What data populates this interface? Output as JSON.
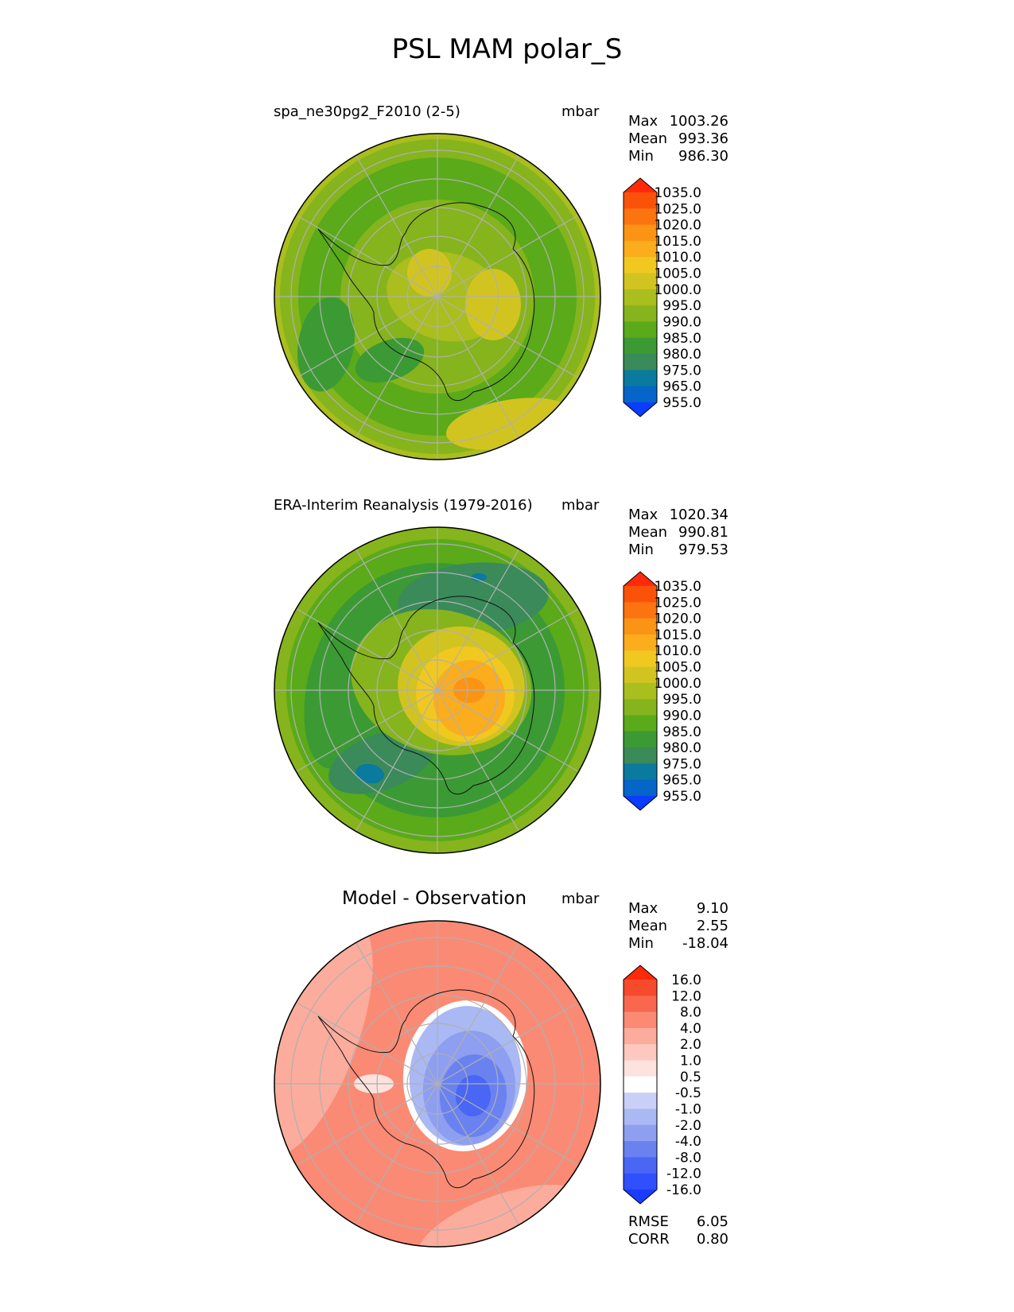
{
  "figure_title": "PSL MAM polar_S",
  "chart_data": [
    {
      "type": "heatmap",
      "projection": "south-polar-stereographic",
      "title": "spa_ne30pg2_F2010 (2-5)",
      "units": "mbar",
      "stats": [
        {
          "label": "Max",
          "value": "1003.26"
        },
        {
          "label": "Mean",
          "value": "993.36"
        },
        {
          "label": "Min",
          "value": "986.30"
        }
      ],
      "colorbar": {
        "levels": [
          "955.0",
          "965.0",
          "975.0",
          "980.0",
          "985.0",
          "990.0",
          "995.0",
          "1000.0",
          "1005.0",
          "1010.0",
          "1015.0",
          "1020.0",
          "1025.0",
          "1035.0"
        ],
        "colors": [
          "#0a3dff",
          "#0565c8",
          "#0a7a9e",
          "#3a8a5a",
          "#3c9a34",
          "#5aaa1a",
          "#86b41c",
          "#aabe1e",
          "#d2c420",
          "#f0c820",
          "#fbad1e",
          "#fb9414",
          "#fb7410",
          "#fb520a",
          "#ff2a0a"
        ]
      },
      "field_description": "Sea-level pressure, roughly 985-1003 mbar; lower (985-990) in circumpolar ring, higher (995-1003) over Antarctic interior and mid-latitudes"
    },
    {
      "type": "heatmap",
      "projection": "south-polar-stereographic",
      "title": "ERA-Interim Reanalysis (1979-2016)",
      "units": "mbar",
      "stats": [
        {
          "label": "Max",
          "value": "1020.34"
        },
        {
          "label": "Mean",
          "value": "990.81"
        },
        {
          "label": "Min",
          "value": "979.53"
        }
      ],
      "colorbar": {
        "levels": [
          "955.0",
          "965.0",
          "975.0",
          "980.0",
          "985.0",
          "990.0",
          "995.0",
          "1000.0",
          "1005.0",
          "1010.0",
          "1015.0",
          "1020.0",
          "1025.0",
          "1035.0"
        ],
        "colors": [
          "#0a3dff",
          "#0565c8",
          "#0a7a9e",
          "#3a8a5a",
          "#3c9a34",
          "#5aaa1a",
          "#86b41c",
          "#aabe1e",
          "#d2c420",
          "#f0c820",
          "#fbad1e",
          "#fb9414",
          "#fb7410",
          "#fb520a",
          "#ff2a0a"
        ]
      },
      "field_description": "High pressure (1010-1020) over East Antarctic plateau, low ring (980-990) around continent"
    },
    {
      "type": "heatmap",
      "projection": "south-polar-stereographic",
      "title": "Model - Observation",
      "units": "mbar",
      "stats": [
        {
          "label": "Max",
          "value": "9.10"
        },
        {
          "label": "Mean",
          "value": "2.55"
        },
        {
          "label": "Min",
          "value": "-18.04"
        }
      ],
      "metrics": [
        {
          "label": "RMSE",
          "value": "6.05"
        },
        {
          "label": "CORR",
          "value": "0.80"
        }
      ],
      "colorbar": {
        "levels": [
          "-16.0",
          "-12.0",
          "-8.0",
          "-4.0",
          "-2.0",
          "-1.0",
          "-0.5",
          "0.5",
          "1.0",
          "2.0",
          "4.0",
          "8.0",
          "12.0",
          "16.0"
        ],
        "colors": [
          "#1a3cff",
          "#3050ff",
          "#4a66f5",
          "#6a82f0",
          "#8e9ef0",
          "#aab8f4",
          "#c8d0f8",
          "#ffffff",
          "#fde2de",
          "#fcc8bf",
          "#fbac9c",
          "#fa8a74",
          "#f8684e",
          "#f64a2c",
          "#ff2a0a"
        ]
      },
      "field_description": "Negative differences (-8 to -18) over East Antarctic interior, positive (+4 to +9) elsewhere"
    }
  ]
}
